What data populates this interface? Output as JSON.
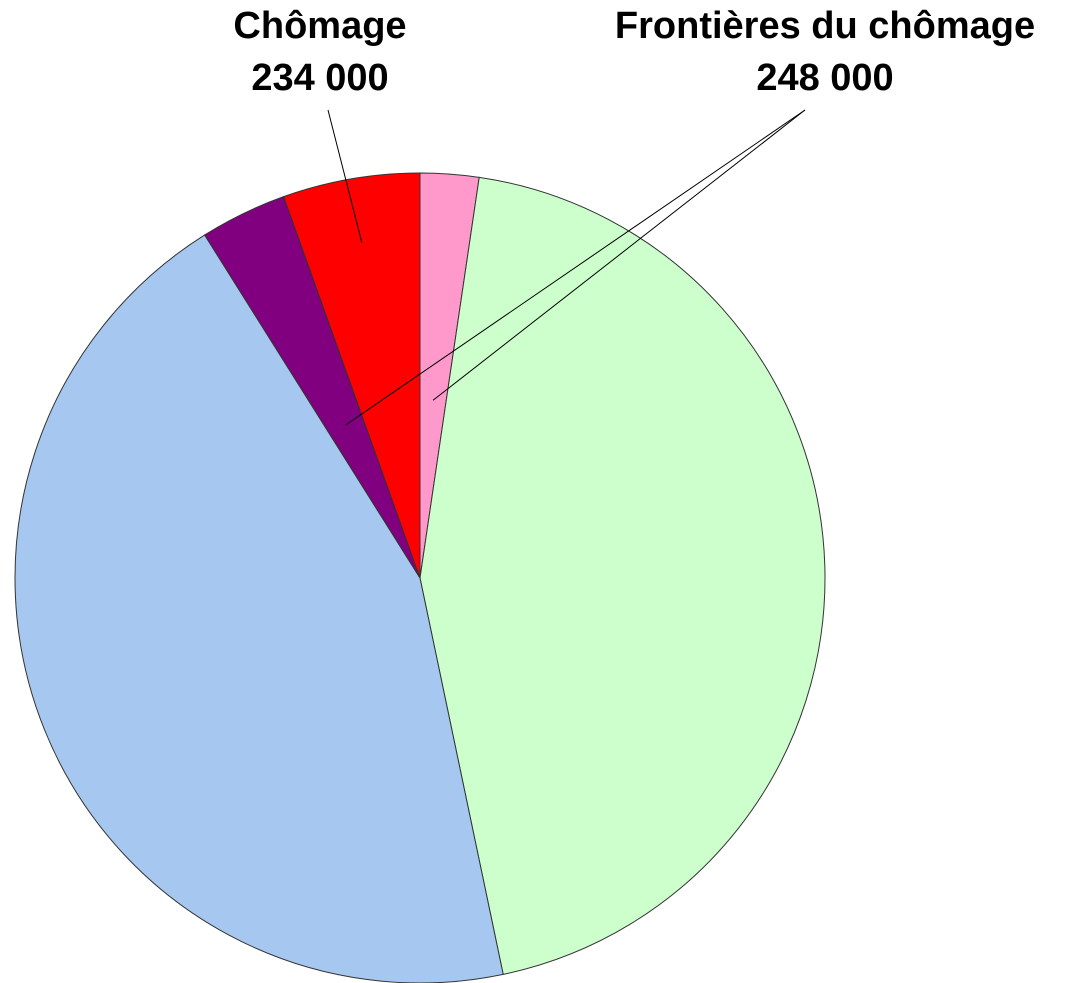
{
  "chart_data": {
    "type": "pie",
    "categories": [
      null,
      null,
      null,
      null,
      "Chômage"
    ],
    "values": [
      100000,
      1900000,
      1900000,
      148000,
      234000
    ],
    "value_labels": [
      null,
      null,
      null,
      null,
      "234 000"
    ],
    "colors": [
      "#ff99cc",
      "#ccffcc",
      "#a6c8f0",
      "#800080",
      "#ff0000"
    ],
    "annotations": [
      {
        "text": "Frontières du chômage",
        "label": "248 000",
        "slices": [
          0,
          3
        ]
      }
    ]
  }
}
